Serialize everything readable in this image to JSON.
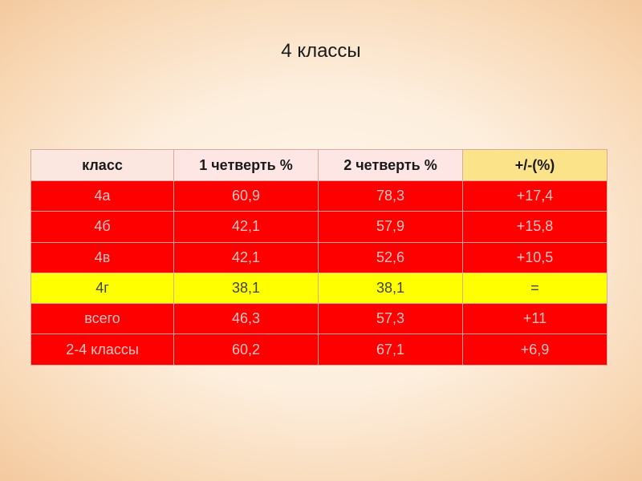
{
  "slide": {
    "title": "4 классы"
  },
  "table": {
    "headers": [
      "класс",
      "1 четверть %",
      "2 четверть %",
      "+/-(%)"
    ],
    "rows": [
      {
        "class": "4а",
        "q1": "60,9",
        "q2": "78,3",
        "diff": "+17,4",
        "highlight": "red"
      },
      {
        "class": "4б",
        "q1": "42,1",
        "q2": "57,9",
        "diff": "+15,8",
        "highlight": "red"
      },
      {
        "class": "4в",
        "q1": "42,1",
        "q2": "52,6",
        "diff": "+10,5",
        "highlight": "red"
      },
      {
        "class": "4г",
        "q1": "38,1",
        "q2": "38,1",
        "diff": "=",
        "highlight": "yellow"
      },
      {
        "class": "всего",
        "q1": "46,3",
        "q2": "57,3",
        "diff": "+11",
        "highlight": "red"
      },
      {
        "class": "2-4 классы",
        "q1": "60,2",
        "q2": "67,1",
        "diff": "+6,9",
        "highlight": "red"
      }
    ]
  },
  "colors": {
    "red_row": "#ff0000",
    "yellow_row": "#ffff00",
    "header_bg": "#fce6e0",
    "diff_header_bg": "#fbe38a"
  }
}
